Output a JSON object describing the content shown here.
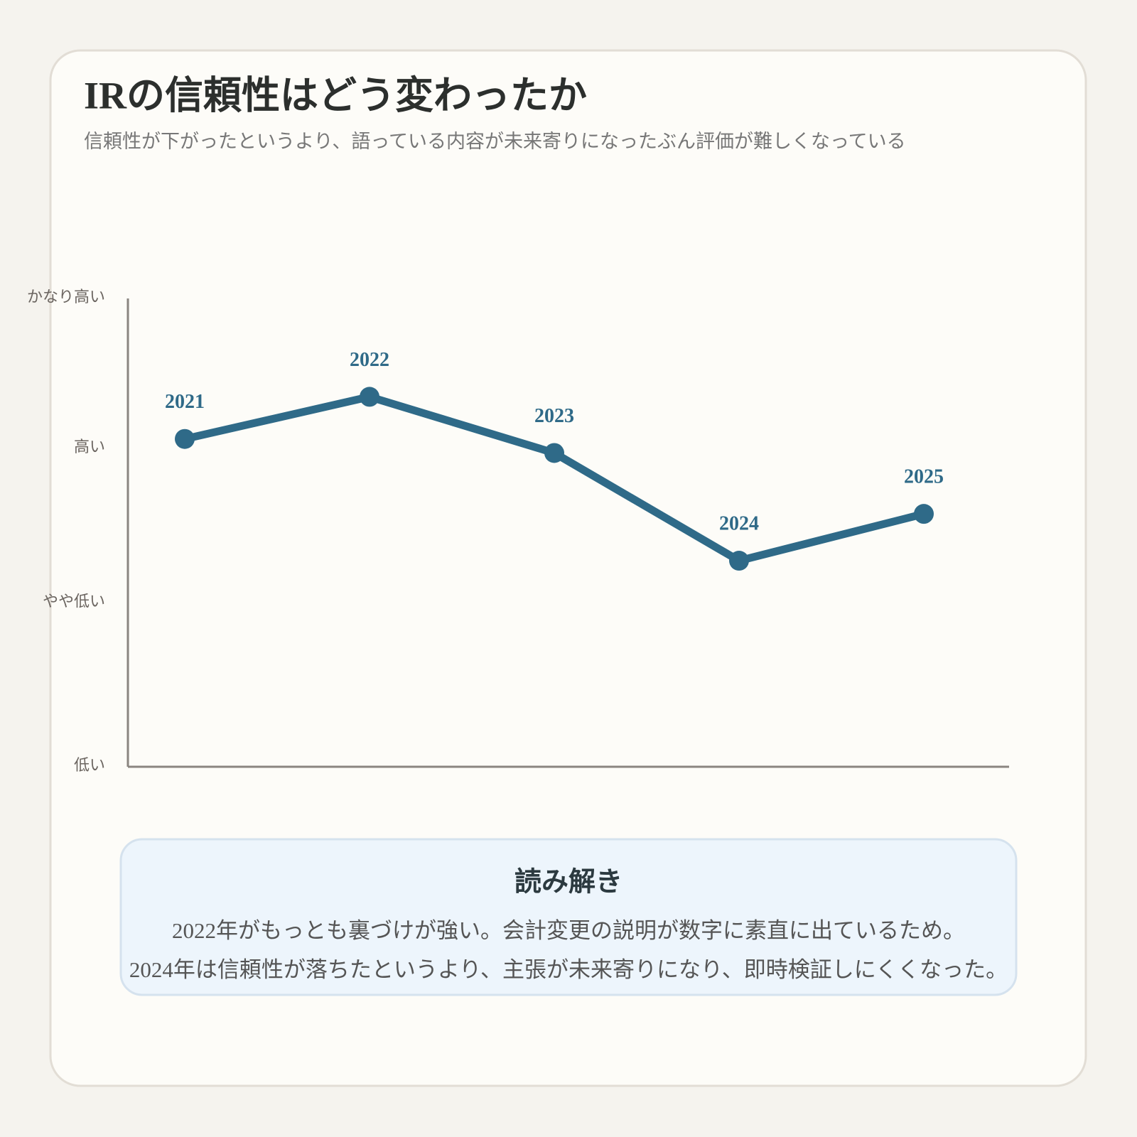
{
  "chart_data": {
    "type": "line",
    "title": "IRの信頼性はどう変わったか",
    "subtitle": "信頼性が下がったというより、語っている内容が未来寄りになったぶん評価が難しくなっている",
    "categories": [
      "2021",
      "2022",
      "2023",
      "2024",
      "2025"
    ],
    "values": [
      70,
      79,
      67,
      44,
      54
    ],
    "color": "#2f6a88",
    "ylim": [
      0,
      100
    ],
    "yticks": [
      {
        "value": 0,
        "label": "低い"
      },
      {
        "value": 35,
        "label": "やや低い"
      },
      {
        "value": 68,
        "label": "高い"
      },
      {
        "value": 100,
        "label": "かなり高い"
      }
    ],
    "grid": false
  },
  "note": {
    "title": "読み解き",
    "lines": [
      "2022年がもっとも裏づけが強い。会計変更の説明が数字に素直に出ているため。",
      "2024年は信頼性が落ちたというより、主張が未来寄りになり、即時検証しにくくなった。"
    ]
  }
}
